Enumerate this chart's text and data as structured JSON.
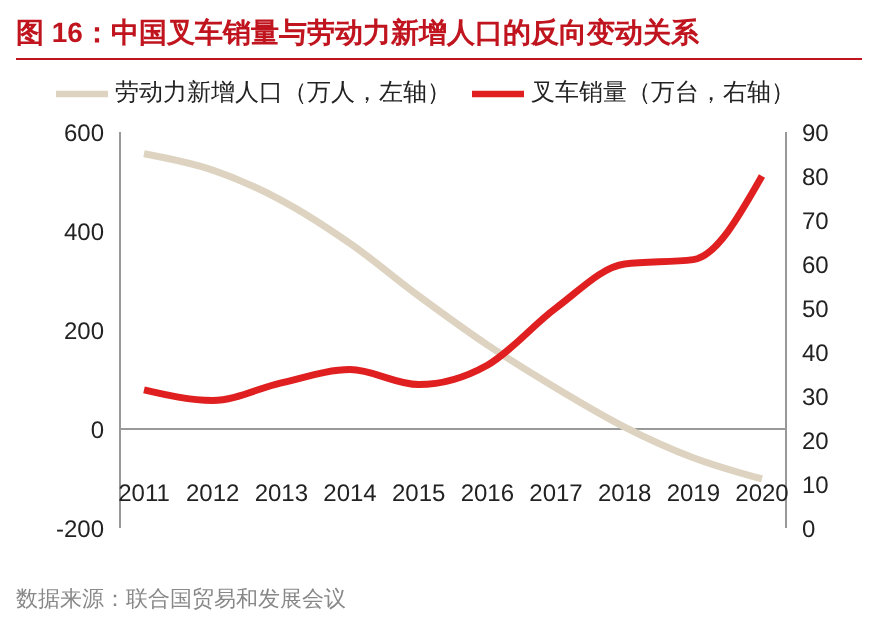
{
  "chart_data": {
    "type": "line",
    "title": "图 16：中国叉车销量与劳动力新增人口的反向变动关系",
    "categories": [
      "2011",
      "2012",
      "2013",
      "2014",
      "2015",
      "2016",
      "2017",
      "2018",
      "2019",
      "2020"
    ],
    "series": [
      {
        "name": "劳动力新增人口（万人，左轴）",
        "color": "#ddd3c0",
        "values": [
          556,
          523,
          462,
          375,
          269,
          170,
          83,
          4,
          -58,
          -101
        ]
      },
      {
        "name": "叉车销量（万台，右轴）",
        "color": "#e02020",
        "axis": "y2",
        "values": [
          31.4,
          29,
          33,
          36,
          32.6,
          37,
          50,
          60,
          61,
          80
        ]
      }
    ],
    "ylim": [
      -200,
      600
    ],
    "yticks": [
      -200,
      0,
      200,
      400,
      600
    ],
    "y2lim": [
      0,
      90
    ],
    "y2ticks": [
      0,
      10,
      20,
      30,
      40,
      50,
      60,
      70,
      80,
      90
    ],
    "grid": false,
    "legend": "top",
    "marker": "none",
    "line_style": "solid",
    "annotations": [
      "数据来源：联合国贸易和发展会议"
    ]
  }
}
